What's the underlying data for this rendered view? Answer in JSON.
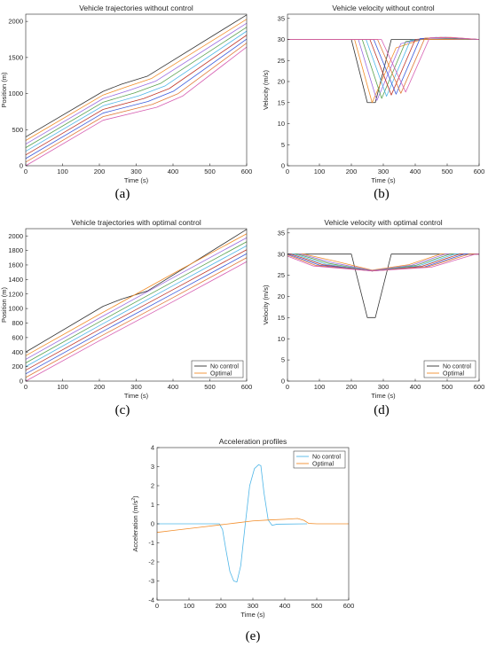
{
  "chart_data": [
    {
      "id": "a",
      "caption": "(a)",
      "type": "line",
      "title": "Vehicle trajectories without control",
      "xlabel": "Time (s)",
      "ylabel": "Position (m)",
      "xlim": [
        0,
        600
      ],
      "ylim": [
        0,
        2100
      ],
      "xticks": [
        0,
        100,
        200,
        300,
        400,
        500,
        600
      ],
      "yticks": [
        0,
        500,
        1000,
        1500,
        2000
      ],
      "series": [
        {
          "color": "#333333",
          "x": [
            0,
            210,
            260,
            330,
            600
          ],
          "y": [
            400,
            1030,
            1130,
            1240,
            2090
          ]
        },
        {
          "color": "#f28e2b",
          "x": [
            0,
            210,
            272,
            342,
            600
          ],
          "y": [
            350,
            980,
            1090,
            1210,
            2030
          ]
        },
        {
          "color": "#9c6ce0",
          "x": [
            0,
            210,
            284,
            354,
            600
          ],
          "y": [
            300,
            930,
            1050,
            1175,
            1975
          ]
        },
        {
          "color": "#59a14f",
          "x": [
            0,
            210,
            296,
            366,
            600
          ],
          "y": [
            250,
            880,
            1010,
            1140,
            1920
          ]
        },
        {
          "color": "#4fb6e8",
          "x": [
            0,
            210,
            308,
            378,
            600
          ],
          "y": [
            200,
            830,
            970,
            1105,
            1865
          ]
        },
        {
          "color": "#c0392b",
          "x": [
            0,
            210,
            320,
            390,
            600
          ],
          "y": [
            150,
            780,
            930,
            1070,
            1810
          ]
        },
        {
          "color": "#3b5bdb",
          "x": [
            0,
            210,
            332,
            402,
            600
          ],
          "y": [
            100,
            730,
            890,
            1035,
            1755
          ]
        },
        {
          "color": "#e07b39",
          "x": [
            0,
            210,
            344,
            414,
            600
          ],
          "y": [
            50,
            680,
            850,
            1000,
            1700
          ]
        },
        {
          "color": "#d65db1",
          "x": [
            0,
            210,
            356,
            426,
            600
          ],
          "y": [
            0,
            630,
            810,
            965,
            1645
          ]
        }
      ]
    },
    {
      "id": "b",
      "caption": "(b)",
      "type": "line",
      "title": "Vehicle velocity without control",
      "xlabel": "Time (s)",
      "ylabel": "Velocity (m/s)",
      "xlim": [
        0,
        600
      ],
      "ylim": [
        0,
        36
      ],
      "xticks": [
        0,
        100,
        200,
        300,
        400,
        500,
        600
      ],
      "yticks": [
        0,
        5,
        10,
        15,
        20,
        25,
        30,
        35
      ],
      "series": [
        {
          "color": "#333333",
          "x": [
            0,
            200,
            250,
            275,
            325,
            600
          ],
          "y": [
            30,
            30,
            15,
            15,
            30,
            30
          ]
        },
        {
          "color": "#f28e2b",
          "x": [
            0,
            210,
            265,
            340,
            420,
            600
          ],
          "y": [
            30,
            30,
            15,
            28,
            30,
            30
          ]
        },
        {
          "color": "#9c6ce0",
          "x": [
            0,
            222,
            280,
            355,
            435,
            600
          ],
          "y": [
            30,
            30,
            15.5,
            29,
            30.3,
            30
          ]
        },
        {
          "color": "#59a14f",
          "x": [
            0,
            234,
            295,
            370,
            450,
            600
          ],
          "y": [
            30,
            30,
            16,
            29.5,
            30.4,
            30
          ]
        },
        {
          "color": "#4fb6e8",
          "x": [
            0,
            246,
            310,
            385,
            465,
            600
          ],
          "y": [
            30,
            30,
            16.5,
            29.8,
            30.5,
            30
          ]
        },
        {
          "color": "#c0392b",
          "x": [
            0,
            258,
            325,
            400,
            480,
            600
          ],
          "y": [
            30,
            30,
            16.8,
            30,
            30.5,
            30
          ]
        },
        {
          "color": "#3b5bdb",
          "x": [
            0,
            270,
            340,
            415,
            495,
            600
          ],
          "y": [
            30,
            30,
            17,
            30.2,
            30.5,
            30
          ]
        },
        {
          "color": "#e07b39",
          "x": [
            0,
            282,
            355,
            430,
            510,
            600
          ],
          "y": [
            30,
            30,
            17.2,
            30.3,
            30.5,
            30
          ]
        },
        {
          "color": "#d65db1",
          "x": [
            0,
            294,
            370,
            445,
            525,
            600
          ],
          "y": [
            30,
            30,
            17.5,
            30.4,
            30.4,
            30
          ]
        }
      ]
    },
    {
      "id": "c",
      "caption": "(c)",
      "type": "line",
      "title": "Vehicle trajectories with optimal control",
      "xlabel": "Time (s)",
      "ylabel": "Position (m)",
      "xlim": [
        0,
        600
      ],
      "ylim": [
        0,
        2100
      ],
      "xticks": [
        0,
        100,
        200,
        300,
        400,
        500,
        600
      ],
      "yticks": [
        0,
        200,
        400,
        600,
        800,
        1000,
        1200,
        1400,
        1600,
        1800,
        2000
      ],
      "legend": {
        "location": "bottom-right",
        "entries": [
          "No control",
          "Optimal"
        ]
      },
      "series": [
        {
          "color": "#333333",
          "x": [
            0,
            210,
            260,
            330,
            600
          ],
          "y": [
            400,
            1030,
            1130,
            1240,
            2090
          ]
        },
        {
          "color": "#f28e2b",
          "x": [
            0,
            200,
            400,
            600
          ],
          "y": [
            350,
            920,
            1480,
            2030
          ]
        },
        {
          "color": "#9c6ce0",
          "x": [
            0,
            200,
            400,
            600
          ],
          "y": [
            300,
            868,
            1425,
            1975
          ]
        },
        {
          "color": "#59a14f",
          "x": [
            0,
            200,
            400,
            600
          ],
          "y": [
            250,
            816,
            1370,
            1920
          ]
        },
        {
          "color": "#4fb6e8",
          "x": [
            0,
            200,
            400,
            600
          ],
          "y": [
            200,
            764,
            1315,
            1865
          ]
        },
        {
          "color": "#c0392b",
          "x": [
            0,
            200,
            400,
            600
          ],
          "y": [
            150,
            712,
            1260,
            1810
          ]
        },
        {
          "color": "#3b5bdb",
          "x": [
            0,
            200,
            400,
            600
          ],
          "y": [
            100,
            660,
            1205,
            1755
          ]
        },
        {
          "color": "#e07b39",
          "x": [
            0,
            200,
            400,
            600
          ],
          "y": [
            50,
            608,
            1150,
            1700
          ]
        },
        {
          "color": "#d65db1",
          "x": [
            0,
            200,
            400,
            600
          ],
          "y": [
            0,
            556,
            1095,
            1645
          ]
        }
      ]
    },
    {
      "id": "d",
      "caption": "(d)",
      "type": "line",
      "title": "Vehicle velocity with optimal control",
      "xlabel": "Time (s)",
      "ylabel": "Velocity (m/s)",
      "xlim": [
        0,
        600
      ],
      "ylim": [
        0,
        36
      ],
      "xticks": [
        0,
        100,
        200,
        300,
        400,
        500,
        600
      ],
      "yticks": [
        0,
        5,
        10,
        15,
        20,
        25,
        30,
        35
      ],
      "legend": {
        "location": "bottom-right",
        "entries": [
          "No control",
          "Optimal"
        ]
      },
      "series": [
        {
          "color": "#333333",
          "x": [
            0,
            200,
            250,
            275,
            325,
            600
          ],
          "y": [
            30,
            30,
            15,
            15,
            30,
            30
          ]
        },
        {
          "color": "#f28e2b",
          "x": [
            0,
            50,
            150,
            265,
            380,
            480,
            600
          ],
          "y": [
            30,
            30,
            28.3,
            26.2,
            27.5,
            30,
            30
          ]
        },
        {
          "color": "#9c6ce0",
          "x": [
            0,
            40,
            140,
            265,
            390,
            495,
            600
          ],
          "y": [
            30,
            30,
            28,
            26.1,
            27.4,
            30,
            30
          ]
        },
        {
          "color": "#59a14f",
          "x": [
            0,
            30,
            130,
            265,
            400,
            510,
            600
          ],
          "y": [
            30,
            30,
            27.8,
            26.0,
            27.3,
            30,
            30
          ]
        },
        {
          "color": "#4fb6e8",
          "x": [
            0,
            20,
            120,
            265,
            410,
            525,
            600
          ],
          "y": [
            30,
            30,
            27.6,
            26.0,
            27.2,
            30,
            30
          ]
        },
        {
          "color": "#c0392b",
          "x": [
            0,
            10,
            110,
            265,
            420,
            540,
            600
          ],
          "y": [
            30,
            30,
            27.5,
            26.0,
            27.1,
            30,
            30
          ]
        },
        {
          "color": "#3b5bdb",
          "x": [
            0,
            100,
            265,
            430,
            555,
            600
          ],
          "y": [
            30,
            27.4,
            26.0,
            27.0,
            30,
            30
          ]
        },
        {
          "color": "#e07b39",
          "x": [
            0,
            90,
            265,
            440,
            570,
            600
          ],
          "y": [
            29.8,
            27.3,
            26.0,
            27.0,
            30,
            30
          ]
        },
        {
          "color": "#d65db1",
          "x": [
            0,
            80,
            265,
            450,
            585,
            600
          ],
          "y": [
            29.5,
            27.2,
            26.0,
            26.9,
            29.9,
            30
          ]
        }
      ]
    },
    {
      "id": "e",
      "caption": "(e)",
      "type": "line",
      "title": "Acceleration profiles",
      "xlabel": "Time (s)",
      "ylabel": "Acceleration (m/s",
      "ylabel_sup": "2",
      "ylabel_end": ")",
      "xlim": [
        0,
        600
      ],
      "ylim": [
        -4,
        4
      ],
      "xticks": [
        0,
        100,
        200,
        300,
        400,
        500,
        600
      ],
      "yticks": [
        -4,
        -3,
        -2,
        -1,
        0,
        1,
        2,
        3,
        4
      ],
      "legend": {
        "location": "top-right",
        "entries": [
          "No control",
          "Optimal"
        ]
      },
      "series": [
        {
          "name": "No control",
          "color": "#4fb6e8",
          "x": [
            0,
            195,
            205,
            215,
            228,
            240,
            250,
            262,
            275,
            290,
            305,
            318,
            325,
            335,
            348,
            360,
            375,
            470
          ],
          "y": [
            0,
            0,
            -0.3,
            -1.3,
            -2.5,
            -3.0,
            -3.05,
            -2.2,
            -0.2,
            2.0,
            2.9,
            3.1,
            3.05,
            1.6,
            0.2,
            -0.08,
            -0.02,
            0
          ]
        },
        {
          "name": "Optimal",
          "color": "#f28e2b",
          "x": [
            0,
            50,
            100,
            150,
            200,
            250,
            300,
            350,
            400,
            440,
            460,
            475,
            500,
            600
          ],
          "y": [
            -0.45,
            -0.35,
            -0.25,
            -0.15,
            -0.05,
            0.05,
            0.15,
            0.2,
            0.24,
            0.28,
            0.18,
            0.02,
            0,
            0
          ]
        }
      ]
    }
  ]
}
